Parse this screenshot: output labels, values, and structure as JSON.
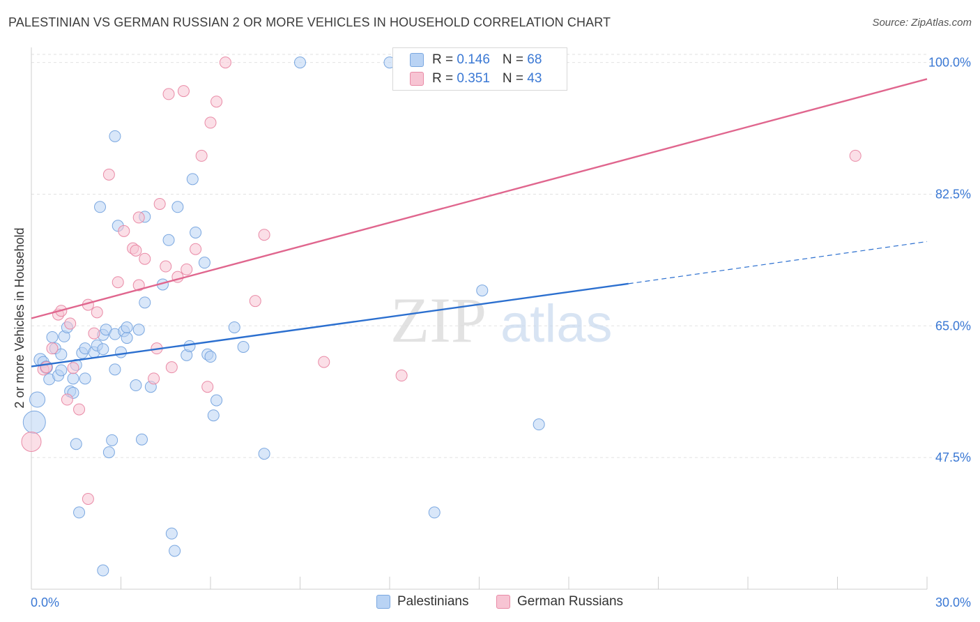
{
  "header": {
    "title": "PALESTINIAN VS GERMAN RUSSIAN 2 OR MORE VEHICLES IN HOUSEHOLD CORRELATION CHART",
    "source": "Source: ZipAtlas.com"
  },
  "watermark": {
    "part1": "ZIP",
    "part2": "atlas"
  },
  "colors": {
    "blue_fill": "#b9d3f4",
    "blue_stroke": "#7aa7e0",
    "blue_line": "#2b6fcf",
    "pink_fill": "#f7c4d3",
    "pink_stroke": "#e98aa6",
    "pink_line": "#e0668e",
    "axis_label": "#3a78d4",
    "grid": "#e2e2e2"
  },
  "stats_box": {
    "rows": [
      {
        "r_label": "R = ",
        "r_value": "0.146",
        "n_label": "N = ",
        "n_value": "68",
        "series": "blue"
      },
      {
        "r_label": "R = ",
        "r_value": "0.351",
        "n_label": "N = ",
        "n_value": "43",
        "series": "pink"
      }
    ]
  },
  "legend": {
    "items": [
      {
        "label": "Palestinians",
        "series": "blue"
      },
      {
        "label": "German Russians",
        "series": "pink"
      }
    ]
  },
  "chart_data": {
    "type": "scatter",
    "title": "PALESTINIAN VS GERMAN RUSSIAN 2 OR MORE VEHICLES IN HOUSEHOLD CORRELATION CHART",
    "xlabel": "",
    "ylabel": "2 or more Vehicles in Household",
    "xlim": [
      0,
      30
    ],
    "ylim": [
      30,
      102
    ],
    "x_tick_labels": [
      {
        "value": 0,
        "label": "0.0%"
      },
      {
        "value": 30,
        "label": "30.0%"
      }
    ],
    "y_ticks": [
      {
        "value": 47.5,
        "label": "47.5%"
      },
      {
        "value": 65.0,
        "label": "65.0%"
      },
      {
        "value": 82.5,
        "label": "82.5%"
      },
      {
        "value": 100.0,
        "label": "100.0%"
      }
    ],
    "grid": true,
    "legend_position": "bottom",
    "series": [
      {
        "name": "Palestinians",
        "color": "blue",
        "trend": {
          "x0": 0,
          "y0": 59.6,
          "x1": 20,
          "y1": 70.6,
          "dashed_to_x": 30,
          "dashed_to_y": 76.2
        },
        "points": [
          [
            0.2,
            55.2,
            11
          ],
          [
            0.1,
            52.2,
            16
          ],
          [
            0.3,
            60.5,
            9
          ],
          [
            0.4,
            60.2,
            8
          ],
          [
            0.5,
            59.5,
            9
          ],
          [
            0.6,
            57.9,
            8
          ],
          [
            0.7,
            63.5,
            8
          ],
          [
            0.8,
            62.0,
            8
          ],
          [
            0.9,
            58.4,
            8
          ],
          [
            1.0,
            61.2,
            8
          ],
          [
            1.0,
            59.1,
            8
          ],
          [
            1.1,
            63.6,
            8
          ],
          [
            1.2,
            64.8,
            8
          ],
          [
            1.3,
            56.3,
            8
          ],
          [
            1.4,
            56.1,
            8
          ],
          [
            1.4,
            58.0,
            8
          ],
          [
            1.5,
            59.8,
            8
          ],
          [
            1.5,
            49.3,
            8
          ],
          [
            1.6,
            40.2,
            8
          ],
          [
            1.7,
            61.4,
            8
          ],
          [
            1.8,
            58.0,
            8
          ],
          [
            1.8,
            62.0,
            8
          ],
          [
            2.1,
            61.5,
            8
          ],
          [
            2.2,
            62.4,
            8
          ],
          [
            2.3,
            80.8,
            8
          ],
          [
            2.4,
            61.9,
            8
          ],
          [
            2.4,
            32.5,
            8
          ],
          [
            2.4,
            63.8,
            8
          ],
          [
            2.5,
            64.5,
            8
          ],
          [
            2.6,
            48.2,
            8
          ],
          [
            2.7,
            49.8,
            8
          ],
          [
            2.8,
            63.9,
            8
          ],
          [
            2.8,
            90.2,
            8
          ],
          [
            2.8,
            59.2,
            8
          ],
          [
            2.9,
            78.3,
            8
          ],
          [
            3.0,
            61.5,
            8
          ],
          [
            3.1,
            64.3,
            8
          ],
          [
            3.2,
            63.4,
            8
          ],
          [
            3.2,
            64.8,
            8
          ],
          [
            3.5,
            57.1,
            8
          ],
          [
            3.6,
            64.5,
            8
          ],
          [
            3.7,
            49.9,
            8
          ],
          [
            3.8,
            79.5,
            8
          ],
          [
            3.8,
            68.1,
            8
          ],
          [
            4.0,
            56.9,
            8
          ],
          [
            4.4,
            70.5,
            8
          ],
          [
            4.6,
            76.4,
            8
          ],
          [
            4.7,
            37.4,
            8
          ],
          [
            4.8,
            35.1,
            8
          ],
          [
            4.9,
            80.8,
            8
          ],
          [
            5.2,
            61.1,
            8
          ],
          [
            5.3,
            62.3,
            8
          ],
          [
            5.4,
            84.5,
            8
          ],
          [
            5.5,
            77.4,
            8
          ],
          [
            5.8,
            73.4,
            8
          ],
          [
            5.9,
            61.2,
            8
          ],
          [
            6.0,
            60.9,
            8
          ],
          [
            6.1,
            53.1,
            8
          ],
          [
            6.2,
            55.1,
            8
          ],
          [
            6.8,
            64.8,
            8
          ],
          [
            7.1,
            62.2,
            8
          ],
          [
            7.8,
            48.0,
            8
          ],
          [
            9.0,
            100.0,
            8
          ],
          [
            12.0,
            100.0,
            8
          ],
          [
            13.5,
            40.2,
            8
          ],
          [
            15.1,
            69.7,
            8
          ],
          [
            17.0,
            51.9,
            8
          ]
        ]
      },
      {
        "name": "German Russians",
        "color": "pink",
        "trend": {
          "x0": 0,
          "y0": 66.0,
          "x1": 30,
          "y1": 97.8
        },
        "points": [
          [
            0.0,
            49.6,
            14
          ],
          [
            0.4,
            59.2,
            8
          ],
          [
            0.5,
            59.5,
            8
          ],
          [
            0.7,
            62.0,
            8
          ],
          [
            0.9,
            66.5,
            8
          ],
          [
            1.0,
            67.0,
            8
          ],
          [
            1.2,
            55.2,
            8
          ],
          [
            1.3,
            65.3,
            8
          ],
          [
            1.4,
            59.4,
            8
          ],
          [
            1.6,
            53.9,
            8
          ],
          [
            1.9,
            42.0,
            8
          ],
          [
            1.9,
            67.8,
            8
          ],
          [
            2.1,
            64.0,
            8
          ],
          [
            2.2,
            66.8,
            8
          ],
          [
            2.6,
            85.1,
            8
          ],
          [
            2.9,
            70.8,
            8
          ],
          [
            3.1,
            77.6,
            8
          ],
          [
            3.4,
            75.3,
            8
          ],
          [
            3.5,
            75.0,
            8
          ],
          [
            3.6,
            70.4,
            8
          ],
          [
            3.6,
            79.4,
            8
          ],
          [
            3.8,
            73.9,
            8
          ],
          [
            4.1,
            58.0,
            8
          ],
          [
            4.2,
            62.0,
            8
          ],
          [
            4.3,
            81.2,
            8
          ],
          [
            4.5,
            72.9,
            8
          ],
          [
            4.6,
            95.8,
            8
          ],
          [
            4.7,
            59.5,
            8
          ],
          [
            4.9,
            71.5,
            8
          ],
          [
            5.1,
            96.2,
            8
          ],
          [
            5.2,
            72.5,
            8
          ],
          [
            5.5,
            75.2,
            8
          ],
          [
            5.7,
            87.6,
            8
          ],
          [
            5.9,
            56.9,
            8
          ],
          [
            6.0,
            92.0,
            8
          ],
          [
            6.2,
            94.8,
            8
          ],
          [
            6.5,
            100.0,
            8
          ],
          [
            7.5,
            68.3,
            8
          ],
          [
            7.8,
            77.1,
            8
          ],
          [
            9.8,
            60.2,
            8
          ],
          [
            12.4,
            58.4,
            8
          ],
          [
            27.6,
            87.6,
            8
          ]
        ]
      }
    ]
  }
}
